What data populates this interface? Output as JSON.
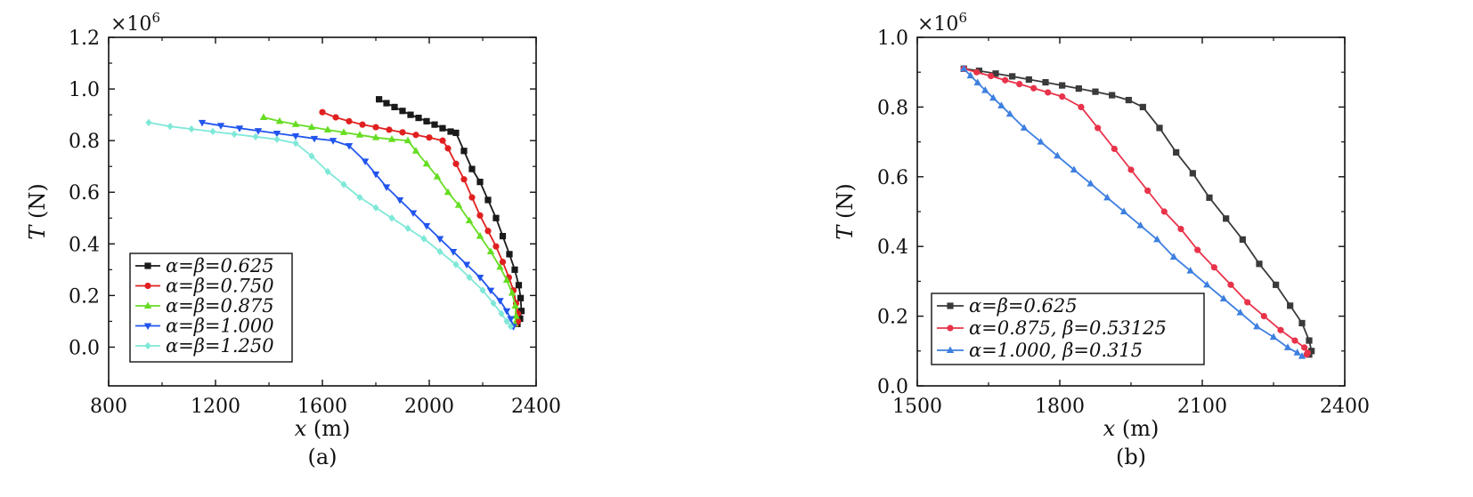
{
  "chart_data": [
    {
      "type": "line",
      "caption": "(a)",
      "xlabel": "x (m)",
      "ylabel": "T (N)",
      "y_multiplier": "×10",
      "y_multiplier_exp": "6",
      "xlim": [
        800,
        2400
      ],
      "ylim": [
        -0.15,
        1.2
      ],
      "xticks": [
        800,
        1200,
        1600,
        2000,
        2400
      ],
      "xtick_labels": [
        "800",
        "1200",
        "1600",
        "2000",
        "2400"
      ],
      "yticks": [
        0.0,
        0.2,
        0.4,
        0.6,
        0.8,
        1.0,
        1.2
      ],
      "ytick_labels": [
        "0.0",
        "0.2",
        "0.4",
        "0.6",
        "0.8",
        "1.0",
        "1.2"
      ],
      "legend_position": "bottom-left",
      "series": [
        {
          "name": "α=β=0.625",
          "color": "#1a1a1a",
          "marker": "square",
          "x": [
            1812,
            1840,
            1870,
            1900,
            1930,
            1960,
            1990,
            2020,
            2050,
            2080,
            2100,
            2130,
            2160,
            2190,
            2220,
            2250,
            2275,
            2300,
            2320,
            2335,
            2342,
            2345,
            2340,
            2330
          ],
          "y": [
            0.96,
            0.945,
            0.93,
            0.915,
            0.9,
            0.888,
            0.875,
            0.862,
            0.848,
            0.835,
            0.83,
            0.76,
            0.69,
            0.64,
            0.57,
            0.5,
            0.43,
            0.36,
            0.3,
            0.24,
            0.19,
            0.14,
            0.11,
            0.09
          ]
        },
        {
          "name": "α=β=0.750",
          "color": "#e02020",
          "marker": "circle",
          "x": [
            1600,
            1650,
            1700,
            1750,
            1800,
            1850,
            1900,
            1950,
            2000,
            2050,
            2070,
            2100,
            2130,
            2160,
            2190,
            2220,
            2250,
            2275,
            2298,
            2315,
            2325,
            2332,
            2332,
            2325
          ],
          "y": [
            0.91,
            0.89,
            0.875,
            0.862,
            0.852,
            0.842,
            0.832,
            0.822,
            0.812,
            0.8,
            0.77,
            0.71,
            0.65,
            0.58,
            0.51,
            0.45,
            0.39,
            0.33,
            0.27,
            0.22,
            0.17,
            0.13,
            0.1,
            0.09
          ]
        },
        {
          "name": "α=β=0.875",
          "color": "#66dd22",
          "marker": "triangle-up",
          "x": [
            1380,
            1440,
            1500,
            1560,
            1620,
            1680,
            1740,
            1800,
            1860,
            1920,
            1950,
            1990,
            2030,
            2070,
            2110,
            2150,
            2190,
            2230,
            2265,
            2290,
            2310,
            2322,
            2325,
            2320
          ],
          "y": [
            0.89,
            0.875,
            0.863,
            0.852,
            0.842,
            0.832,
            0.822,
            0.812,
            0.805,
            0.8,
            0.76,
            0.71,
            0.66,
            0.6,
            0.55,
            0.49,
            0.43,
            0.37,
            0.31,
            0.26,
            0.21,
            0.16,
            0.12,
            0.09
          ]
        },
        {
          "name": "α=β=1.000",
          "color": "#2255ee",
          "marker": "triangle-down",
          "x": [
            1150,
            1220,
            1290,
            1360,
            1430,
            1500,
            1570,
            1640,
            1700,
            1760,
            1800,
            1840,
            1890,
            1940,
            1990,
            2040,
            2090,
            2140,
            2190,
            2230,
            2265,
            2290,
            2305,
            2315
          ],
          "y": [
            0.87,
            0.858,
            0.848,
            0.838,
            0.828,
            0.818,
            0.808,
            0.8,
            0.78,
            0.72,
            0.67,
            0.62,
            0.57,
            0.52,
            0.47,
            0.42,
            0.37,
            0.32,
            0.27,
            0.22,
            0.18,
            0.14,
            0.11,
            0.08
          ]
        },
        {
          "name": "α=β=1.250",
          "color": "#7fe8d8",
          "marker": "diamond",
          "x": [
            950,
            1030,
            1110,
            1190,
            1270,
            1350,
            1430,
            1500,
            1560,
            1620,
            1680,
            1740,
            1800,
            1860,
            1920,
            1980,
            2040,
            2100,
            2150,
            2200,
            2240,
            2270,
            2290,
            2305
          ],
          "y": [
            0.87,
            0.855,
            0.845,
            0.835,
            0.825,
            0.815,
            0.805,
            0.79,
            0.74,
            0.68,
            0.63,
            0.58,
            0.54,
            0.5,
            0.46,
            0.42,
            0.37,
            0.32,
            0.27,
            0.22,
            0.17,
            0.13,
            0.1,
            0.08
          ]
        }
      ]
    },
    {
      "type": "line",
      "caption": "(b)",
      "xlabel": "x (m)",
      "ylabel": "T (N)",
      "y_multiplier": "×10",
      "y_multiplier_exp": "6",
      "xlim": [
        1500,
        2400
      ],
      "ylim": [
        0.0,
        1.0
      ],
      "xticks": [
        1500,
        1800,
        2100,
        2400
      ],
      "xtick_labels": [
        "1500",
        "1800",
        "2100",
        "2400"
      ],
      "yticks": [
        0.0,
        0.2,
        0.4,
        0.6,
        0.8,
        1.0
      ],
      "ytick_labels": [
        "0.0",
        "0.2",
        "0.4",
        "0.6",
        "0.8",
        "1.0"
      ],
      "legend_position": "bottom-left",
      "series": [
        {
          "name": "α=β=0.625",
          "color": "#3a3a3a",
          "marker": "square",
          "x": [
            1598,
            1630,
            1665,
            1700,
            1735,
            1770,
            1805,
            1840,
            1875,
            1910,
            1945,
            1975,
            2010,
            2045,
            2080,
            2115,
            2150,
            2185,
            2220,
            2255,
            2285,
            2310,
            2325,
            2330,
            2325
          ],
          "y": [
            0.91,
            0.904,
            0.896,
            0.888,
            0.879,
            0.871,
            0.862,
            0.853,
            0.844,
            0.834,
            0.82,
            0.8,
            0.74,
            0.67,
            0.61,
            0.54,
            0.48,
            0.42,
            0.35,
            0.29,
            0.23,
            0.18,
            0.13,
            0.1,
            0.09
          ]
        },
        {
          "name": "α=0.875, β=0.53125",
          "color": "#e8334a",
          "marker": "circle",
          "x": [
            1598,
            1625,
            1655,
            1685,
            1715,
            1745,
            1775,
            1805,
            1845,
            1880,
            1915,
            1950,
            1985,
            2020,
            2055,
            2090,
            2125,
            2160,
            2195,
            2230,
            2265,
            2295,
            2315,
            2322,
            2320
          ],
          "y": [
            0.91,
            0.9,
            0.889,
            0.877,
            0.866,
            0.854,
            0.842,
            0.83,
            0.8,
            0.74,
            0.68,
            0.62,
            0.56,
            0.5,
            0.45,
            0.39,
            0.34,
            0.29,
            0.24,
            0.2,
            0.16,
            0.13,
            0.11,
            0.095,
            0.09
          ]
        },
        {
          "name": "α=1.000, β=0.315",
          "color": "#3d7fe0",
          "marker": "triangle-up",
          "x": [
            1598,
            1612,
            1627,
            1643,
            1660,
            1677,
            1695,
            1725,
            1760,
            1795,
            1830,
            1865,
            1900,
            1935,
            1970,
            2005,
            2040,
            2075,
            2110,
            2145,
            2180,
            2215,
            2250,
            2280,
            2300,
            2310
          ],
          "y": [
            0.91,
            0.89,
            0.87,
            0.848,
            0.826,
            0.804,
            0.78,
            0.74,
            0.7,
            0.66,
            0.62,
            0.58,
            0.54,
            0.5,
            0.46,
            0.42,
            0.37,
            0.33,
            0.29,
            0.25,
            0.21,
            0.17,
            0.14,
            0.11,
            0.095,
            0.085
          ]
        }
      ]
    }
  ]
}
